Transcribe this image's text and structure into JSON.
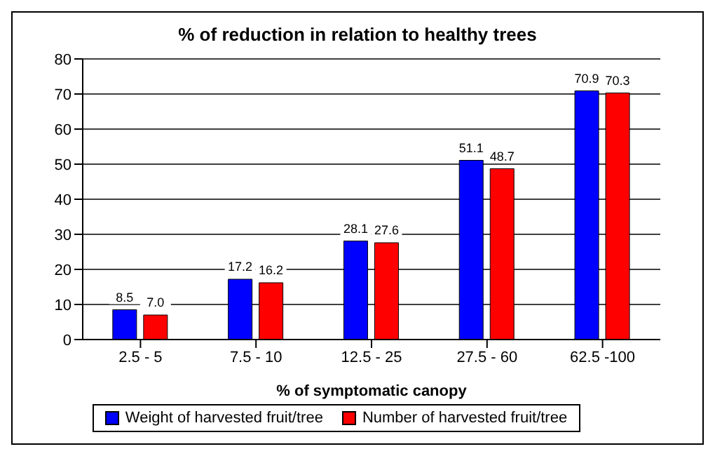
{
  "chart_data": {
    "type": "bar",
    "title": "% of reduction in relation to healthy trees",
    "xlabel": "% of symptomatic canopy",
    "categories": [
      "2.5 - 5",
      "7.5 - 10",
      "12.5 - 25",
      "27.5 - 60",
      "62.5 -100"
    ],
    "series": [
      {
        "name": "Weight of harvested fruit/tree",
        "color": "#0000ff",
        "values": [
          8.5,
          17.2,
          28.1,
          51.1,
          70.9
        ],
        "value_labels": [
          "8.5",
          "17.2",
          "28.1",
          "51.1",
          "70.9"
        ]
      },
      {
        "name": "Number of harvested fruit/tree",
        "color": "#ff0000",
        "values": [
          7.0,
          16.2,
          27.6,
          48.7,
          70.3
        ],
        "value_labels": [
          "7.0",
          "16.2",
          "27.6",
          "48.7",
          "70.3"
        ]
      }
    ],
    "ylim": [
      0,
      80
    ],
    "yticks": [
      0,
      10,
      20,
      30,
      40,
      50,
      60,
      70,
      80
    ],
    "grid": "y",
    "legend": "bottom"
  }
}
